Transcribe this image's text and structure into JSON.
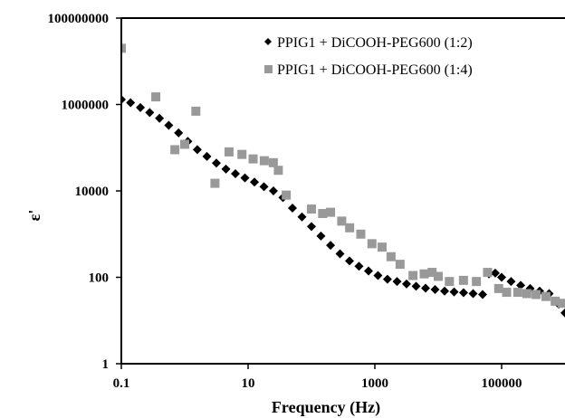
{
  "chart_data": {
    "type": "scatter",
    "title": "",
    "xlabel": "Frequency (Hz)",
    "ylabel": "ε'",
    "x_scale": "log",
    "y_scale": "log",
    "xlim": [
      0.1,
      1000000
    ],
    "ylim": [
      1,
      100000000
    ],
    "x_ticks": [
      {
        "value": 0.1,
        "label": "0.1"
      },
      {
        "value": 10,
        "label": "10"
      },
      {
        "value": 1000,
        "label": "1000"
      },
      {
        "value": 100000,
        "label": "100000"
      }
    ],
    "y_ticks": [
      {
        "value": 1,
        "label": "1"
      },
      {
        "value": 100,
        "label": "100"
      },
      {
        "value": 10000,
        "label": "10000"
      },
      {
        "value": 1000000,
        "label": "1000000"
      },
      {
        "value": 100000000,
        "label": "100000000"
      }
    ],
    "grid": false,
    "legend_position": "top-right",
    "series": [
      {
        "name": "PPIG1 + DiCOOH-PEG600 (1:2)",
        "marker": "diamond",
        "color": "#000000",
        "points": [
          [
            0.1,
            1300000
          ],
          [
            0.14,
            1100000
          ],
          [
            0.2,
            850000
          ],
          [
            0.28,
            650000
          ],
          [
            0.4,
            480000
          ],
          [
            0.56,
            330000
          ],
          [
            0.8,
            220000
          ],
          [
            1.12,
            140000
          ],
          [
            1.58,
            90000
          ],
          [
            2.24,
            63000
          ],
          [
            3.16,
            44000
          ],
          [
            4.47,
            32000
          ],
          [
            6.31,
            25000
          ],
          [
            8.91,
            20000
          ],
          [
            12.6,
            16000
          ],
          [
            17.8,
            12500
          ],
          [
            25.1,
            10000
          ],
          [
            35.5,
            7000
          ],
          [
            50.1,
            4000
          ],
          [
            70.8,
            2500
          ],
          [
            100,
            1500
          ],
          [
            141,
            900
          ],
          [
            200,
            550
          ],
          [
            282,
            350
          ],
          [
            398,
            240
          ],
          [
            562,
            180
          ],
          [
            794,
            140
          ],
          [
            1120,
            110
          ],
          [
            1580,
            90
          ],
          [
            2240,
            80
          ],
          [
            3160,
            70
          ],
          [
            4470,
            62
          ],
          [
            6310,
            56
          ],
          [
            8910,
            52
          ],
          [
            12600,
            48
          ],
          [
            17800,
            46
          ],
          [
            25100,
            44
          ],
          [
            35500,
            42
          ],
          [
            50100,
            40
          ],
          [
            63100,
            120
          ],
          [
            79400,
            125
          ],
          [
            100000,
            100
          ],
          [
            141000,
            80
          ],
          [
            200000,
            65
          ],
          [
            282000,
            55
          ],
          [
            398000,
            48
          ],
          [
            562000,
            42
          ],
          [
            794000,
            24
          ],
          [
            1000000,
            15
          ]
        ]
      },
      {
        "name": "PPIG1 + DiCOOH-PEG600 (1:4)",
        "marker": "square",
        "color": "#999999",
        "points": [
          [
            0.1,
            20000000
          ],
          [
            0.35,
            1500000
          ],
          [
            0.7,
            90000
          ],
          [
            1.0,
            120000
          ],
          [
            1.5,
            700000
          ],
          [
            3.0,
            15000
          ],
          [
            5.0,
            80000
          ],
          [
            8.0,
            70000
          ],
          [
            12.0,
            55000
          ],
          [
            18.0,
            50000
          ],
          [
            25.0,
            45000
          ],
          [
            30.0,
            30000
          ],
          [
            40.0,
            8000
          ],
          [
            100,
            3800
          ],
          [
            150,
            3000
          ],
          [
            200,
            3200
          ],
          [
            300,
            2000
          ],
          [
            400,
            1400
          ],
          [
            600,
            1000
          ],
          [
            900,
            600
          ],
          [
            1300,
            500
          ],
          [
            1800,
            300
          ],
          [
            2500,
            200
          ],
          [
            4000,
            110
          ],
          [
            6000,
            120
          ],
          [
            8000,
            130
          ],
          [
            10000,
            105
          ],
          [
            15000,
            80
          ],
          [
            25000,
            85
          ],
          [
            40000,
            80
          ],
          [
            60000,
            130
          ],
          [
            90000,
            55
          ],
          [
            120000,
            45
          ],
          [
            180000,
            45
          ],
          [
            250000,
            42
          ],
          [
            350000,
            40
          ],
          [
            500000,
            36
          ],
          [
            700000,
            28
          ],
          [
            900000,
            25
          ]
        ]
      }
    ]
  }
}
